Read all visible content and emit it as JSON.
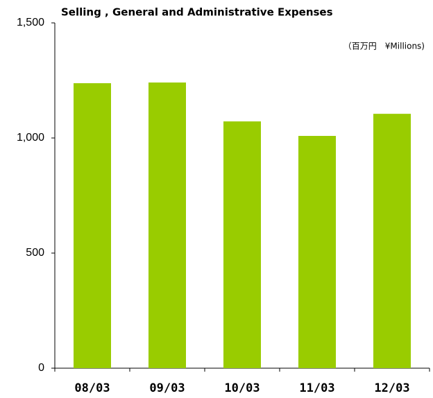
{
  "chart_data": {
    "type": "bar",
    "title": "Selling , General and Administrative Expenses",
    "unit_label": "（百万円　¥Millions)",
    "categories": [
      "08/03",
      "09/03",
      "10/03",
      "11/03",
      "12/03"
    ],
    "values": [
      1238,
      1241,
      1072,
      1009,
      1105
    ],
    "color": "#99cc00",
    "ylim": [
      0,
      1500
    ],
    "yticks": [
      0,
      500,
      {
        "value": 1000,
        "label": "1,000"
      },
      {
        "value": 1500,
        "label": "1,500"
      }
    ],
    "grid": false
  }
}
